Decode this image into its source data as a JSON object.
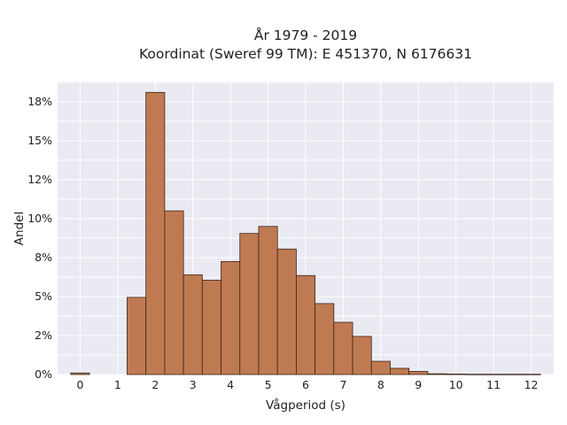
{
  "chart_data": {
    "type": "bar",
    "title": [
      "År 1979 - 2019",
      "Koordinat (Sweref 99 TM): E 451370, N 6176631"
    ],
    "xlabel": "Vågperiod (s)",
    "ylabel": "Andel",
    "xlim": [
      -0.6,
      12.6
    ],
    "ylim": [
      0,
      18.8
    ],
    "x_ticks": [
      0,
      1,
      2,
      3,
      4,
      5,
      6,
      7,
      8,
      9,
      10,
      11,
      12
    ],
    "y_ticks": [
      0,
      2.5,
      5,
      7.5,
      10,
      12.5,
      15,
      17.5
    ],
    "y_tick_labels": [
      "0%",
      "2%",
      "5%",
      "8%",
      "10%",
      "12%",
      "15%",
      "18%"
    ],
    "grid": true,
    "bar_width": 0.5,
    "bar_edges": [
      -0.25,
      0.25,
      0.75,
      1.25,
      1.75,
      2.25,
      2.75,
      3.25,
      3.75,
      4.25,
      4.75,
      5.25,
      5.75,
      6.25,
      6.75,
      7.25,
      7.75,
      8.25,
      8.75,
      9.25,
      9.75,
      10.25,
      10.75,
      11.25,
      11.75,
      12.25
    ],
    "values": [
      0.1,
      0,
      0,
      4.95,
      18.1,
      10.5,
      6.4,
      6.05,
      7.25,
      9.05,
      9.5,
      8.05,
      6.35,
      4.55,
      3.35,
      2.45,
      0.85,
      0.4,
      0.2,
      0.05,
      0.03,
      0.02,
      0.02,
      0.02,
      0.02
    ],
    "colors": {
      "bar_fill": "#c07a52",
      "bar_edge": "#3a2418",
      "plot_bg": "#eaeaf2",
      "grid": "#ffffff"
    }
  }
}
